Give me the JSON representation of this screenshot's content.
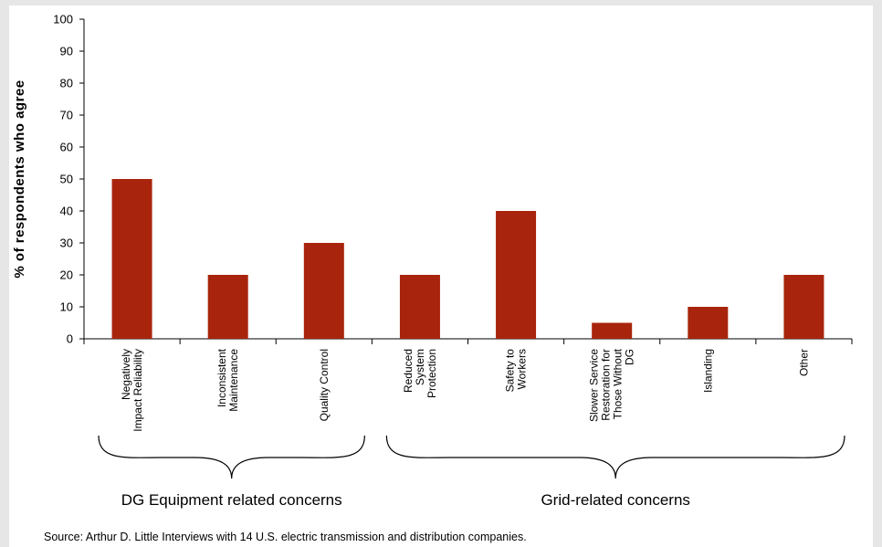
{
  "chart_data": {
    "type": "bar",
    "ylabel": "% of respondents who agree",
    "xlabel": "",
    "ylim": [
      0,
      100
    ],
    "yticks": [
      "0",
      "10",
      "20",
      "30",
      "40",
      "50",
      "60",
      "70",
      "80",
      "90",
      "100"
    ],
    "grid": false,
    "legend": "none",
    "bar_color": "#a8240d",
    "categories": [
      [
        "Negatively",
        "Impact Reliability"
      ],
      [
        "Inconsistent",
        "Maintenance"
      ],
      [
        "Quality Control"
      ],
      [
        "Reduced",
        "System",
        "Protection"
      ],
      [
        "Safety to",
        "Workers"
      ],
      [
        "Slower Service",
        "Restoration for",
        "Those Without",
        "DG"
      ],
      [
        "Islanding"
      ],
      [
        "Other"
      ]
    ],
    "values": [
      50,
      20,
      30,
      20,
      40,
      5,
      10,
      20
    ],
    "groups": [
      {
        "label": "DG Equipment related concerns",
        "categories": [
          0,
          1,
          2
        ]
      },
      {
        "label": "Grid-related concerns",
        "categories": [
          3,
          4,
          5,
          6,
          7
        ]
      }
    ]
  },
  "source_note": "Source: Arthur D. Little Interviews with 14 U.S. electric transmission and distribution companies."
}
